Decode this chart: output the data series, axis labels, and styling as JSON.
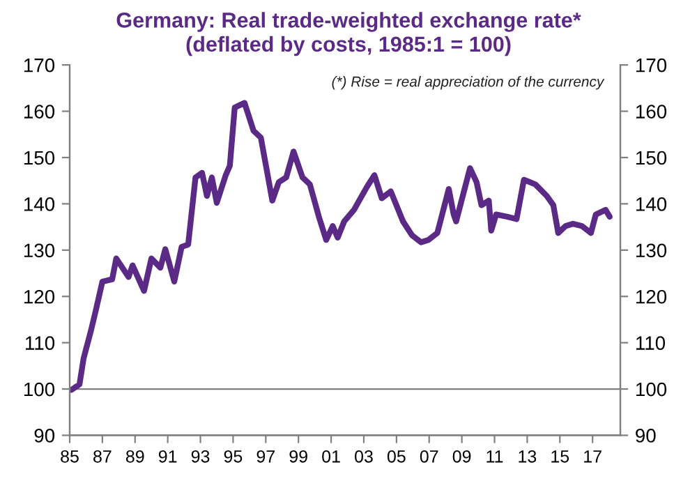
{
  "chart_data": {
    "type": "line",
    "title": "Germany: Real trade-weighted exchange rate*",
    "subtitle": "(deflated by costs, 1985:1 = 100)",
    "annotations": [
      "(*) Rise = real appreciation of the currency"
    ],
    "series": [
      {
        "color": "#5b2a86",
        "x": [
          1985.1,
          1985.6,
          1985.85,
          1986.3,
          1986.6,
          1987.0,
          1987.6,
          1987.85,
          1988.6,
          1988.85,
          1989.55,
          1990.0,
          1990.55,
          1990.85,
          1991.4,
          1991.85,
          1992.25,
          1992.7,
          1993.1,
          1993.4,
          1993.7,
          1994.0,
          1994.55,
          1994.8,
          1995.1,
          1995.7,
          1996.25,
          1996.7,
          1997.4,
          1997.8,
          1998.25,
          1998.7,
          1999.25,
          1999.7,
          2000.25,
          2000.7,
          2001.1,
          2001.4,
          2001.8,
          2002.4,
          2003.2,
          2003.65,
          2004.1,
          2004.65,
          2005.4,
          2005.95,
          2006.5,
          2006.95,
          2007.5,
          2008.2,
          2008.5,
          2008.65,
          2009.5,
          2009.9,
          2010.2,
          2010.65,
          2010.8,
          2011.1,
          2011.8,
          2012.35,
          2012.8,
          2013.5,
          2014.2,
          2014.6,
          2014.9,
          2015.35,
          2015.8,
          2016.35,
          2016.9,
          2017.2,
          2017.8,
          2018.05
        ],
        "values": [
          99.8,
          101,
          106.6,
          112.6,
          117,
          123.2,
          123.7,
          128.2,
          124.2,
          126.7,
          121.2,
          128.2,
          126.2,
          130.2,
          123.2,
          130.7,
          131.2,
          145.7,
          146.7,
          141.7,
          145.7,
          140.2,
          146.2,
          148.2,
          160.8,
          161.8,
          155.8,
          154.3,
          140.7,
          144.7,
          145.7,
          151.3,
          145.7,
          144.2,
          137.2,
          132.2,
          135.2,
          132.7,
          136.2,
          138.7,
          143.7,
          146.2,
          141.2,
          142.7,
          136.2,
          133.2,
          131.7,
          132.2,
          133.7,
          143.2,
          137.7,
          136.2,
          147.7,
          144.7,
          139.7,
          140.7,
          134.2,
          137.7,
          137.2,
          136.7,
          145.2,
          144.2,
          141.7,
          139.7,
          133.7,
          135.2,
          135.7,
          135.2,
          133.7,
          137.7,
          138.7,
          137.2
        ]
      }
    ],
    "xlim": [
      1985,
      2018.7
    ],
    "xticks": [
      {
        "value": 1985,
        "label": "85"
      },
      {
        "value": 1987,
        "label": "87"
      },
      {
        "value": 1989,
        "label": "89"
      },
      {
        "value": 1991,
        "label": "91"
      },
      {
        "value": 1993,
        "label": "93"
      },
      {
        "value": 1995,
        "label": "95"
      },
      {
        "value": 1997,
        "label": "97"
      },
      {
        "value": 1999,
        "label": "99"
      },
      {
        "value": 2001,
        "label": "01"
      },
      {
        "value": 2003,
        "label": "03"
      },
      {
        "value": 2005,
        "label": "05"
      },
      {
        "value": 2007,
        "label": "07"
      },
      {
        "value": 2009,
        "label": "09"
      },
      {
        "value": 2011,
        "label": "11"
      },
      {
        "value": 2013,
        "label": "13"
      },
      {
        "value": 2015,
        "label": "15"
      },
      {
        "value": 2017,
        "label": "17"
      }
    ],
    "ylim": [
      90,
      170
    ],
    "yticks": [
      90,
      100,
      110,
      120,
      130,
      140,
      150,
      160,
      170
    ],
    "y2lim": [
      90,
      170
    ],
    "y2ticks": [
      90,
      100,
      110,
      120,
      130,
      140,
      150,
      160,
      170
    ],
    "ref_lines": [
      {
        "axis": "y",
        "value": 100,
        "color": "#808080"
      }
    ],
    "grid": false,
    "legend": false
  }
}
